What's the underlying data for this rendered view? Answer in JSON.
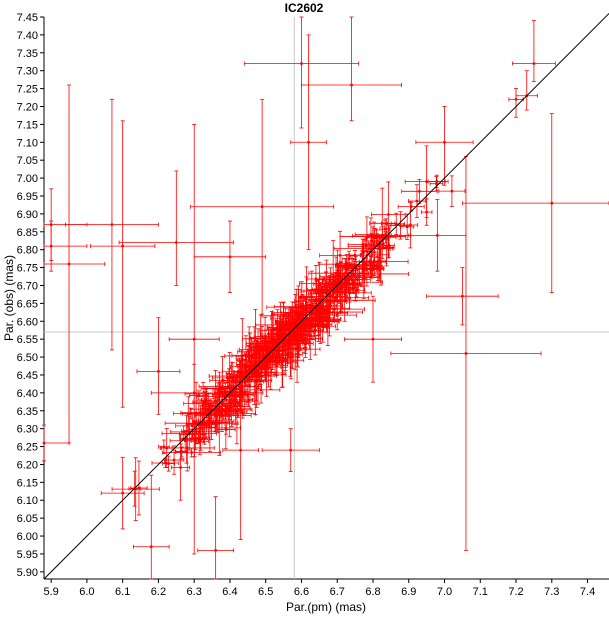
{
  "chart_data": {
    "type": "scatter",
    "title": "IC2602",
    "xlabel": "Par.(pm) (mas)",
    "ylabel": "Par. (obs) (mas)",
    "xlim": [
      5.88,
      7.46
    ],
    "ylim": [
      5.88,
      7.45
    ],
    "x_ticks": [
      "5.9",
      "6.0",
      "6.1",
      "6.2",
      "6.3",
      "6.4",
      "6.5",
      "6.6",
      "6.7",
      "6.8",
      "6.9",
      "7.0",
      "7.1",
      "7.2",
      "7.3",
      "7.4"
    ],
    "y_ticks": [
      "5.90",
      "5.95",
      "6.00",
      "6.05",
      "6.10",
      "6.15",
      "6.20",
      "6.25",
      "6.30",
      "6.35",
      "6.40",
      "6.45",
      "6.50",
      "6.55",
      "6.60",
      "6.65",
      "6.70",
      "6.75",
      "6.80",
      "6.85",
      "6.90",
      "6.95",
      "7.00",
      "7.05",
      "7.10",
      "7.15",
      "7.20",
      "7.25",
      "7.30",
      "7.35",
      "7.40",
      "7.45"
    ],
    "crosshair": {
      "x": 6.58,
      "y": 6.57
    },
    "reference_line": {
      "from": [
        5.88,
        5.88
      ],
      "to": [
        7.46,
        7.46
      ]
    },
    "series_color": "#ff0000",
    "line_color": "#000000",
    "crosshair_color": "#c8c8c8",
    "points": [
      [
        6.6,
        7.32,
        0.16,
        0.18,
        0.22
      ],
      [
        6.74,
        7.26,
        0.14,
        0.1,
        0.2
      ],
      [
        7.25,
        7.32,
        0.06,
        0.05,
        0.12
      ],
      [
        7.23,
        7.23,
        0.03,
        0.04,
        0.07
      ],
      [
        7.2,
        7.22,
        0.02,
        0.05,
        0.03
      ],
      [
        5.95,
        6.76,
        0.1,
        0.5,
        0.5
      ],
      [
        6.07,
        6.87,
        0.13,
        0.35,
        0.35
      ],
      [
        5.9,
        6.81,
        0.1,
        0.07,
        0.07
      ],
      [
        5.9,
        6.87,
        0.1,
        0.1,
        0.1
      ],
      [
        6.25,
        6.82,
        0.16,
        0.12,
        0.2
      ],
      [
        6.49,
        6.92,
        0.2,
        0.3,
        0.3
      ],
      [
        7.3,
        6.93,
        0.25,
        0.25,
        0.25
      ],
      [
        7.06,
        6.51,
        0.21,
        0.55,
        0.55
      ],
      [
        5.88,
        6.26,
        0.07,
        0.05,
        0.05
      ],
      [
        6.1,
        6.81,
        0.09,
        0.45,
        0.35
      ],
      [
        7.0,
        7.1,
        0.08,
        0.12,
        0.1
      ],
      [
        6.3,
        6.55,
        0.07,
        0.6,
        0.6
      ],
      [
        6.18,
        5.97,
        0.05,
        0.2,
        0.2
      ],
      [
        6.36,
        5.96,
        0.05,
        0.15,
        0.15
      ],
      [
        6.62,
        7.1,
        0.05,
        0.3,
        0.3
      ],
      [
        6.98,
        6.84,
        0.08,
        0.1,
        0.1
      ],
      [
        6.57,
        6.24,
        0.08,
        0.06,
        0.06
      ],
      [
        6.43,
        6.24,
        0.05,
        0.25,
        0.25
      ],
      [
        7.05,
        6.67,
        0.1,
        0.08,
        0.08
      ],
      [
        6.3,
        6.4,
        0.12,
        0.08,
        0.08
      ],
      [
        6.2,
        6.46,
        0.06,
        0.12,
        0.15
      ],
      [
        6.95,
        6.99,
        0.06,
        0.1,
        0.1
      ],
      [
        6.8,
        6.55,
        0.08,
        0.12,
        0.12
      ],
      [
        6.4,
        6.78,
        0.1,
        0.1,
        0.1
      ],
      [
        6.1,
        6.12,
        0.06,
        0.1,
        0.1
      ]
    ]
  }
}
